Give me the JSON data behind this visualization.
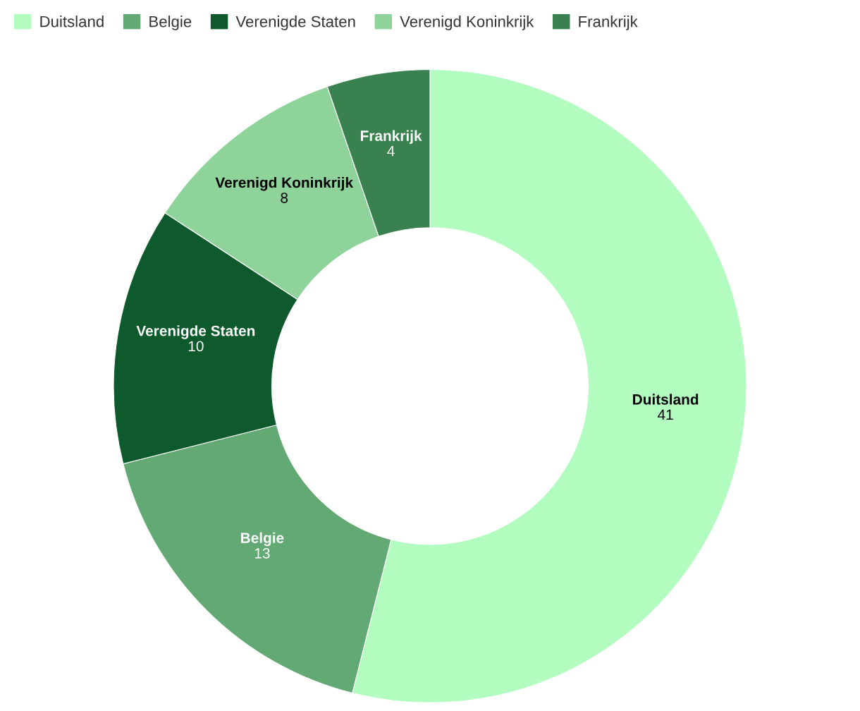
{
  "chart_data": {
    "type": "donut",
    "categories": [
      "Duitsland",
      "Belgie",
      "Verenigde Staten",
      "Verenigd Koninkrijk",
      "Frankrijk"
    ],
    "values": [
      41,
      13,
      10,
      8,
      4
    ],
    "colors": [
      "#b3fcc0",
      "#63a974",
      "#0e5a2c",
      "#8dd39a",
      "#3a8150"
    ],
    "data_labels": true,
    "legend": "top"
  }
}
